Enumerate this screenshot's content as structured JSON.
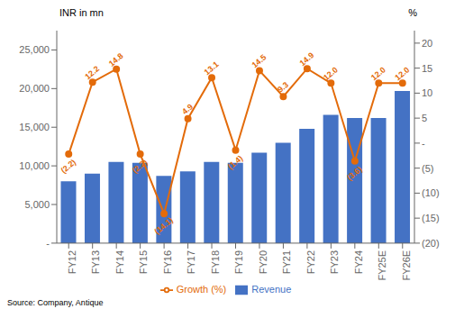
{
  "chart_data": {
    "type": "bar",
    "ylabel": "INR in mn",
    "y2label": "%",
    "annotations": [
      "Source: Company,  Antique"
    ],
    "categories": [
      "FY12",
      "FY13",
      "FY14",
      "FY15",
      "FY16",
      "FY17",
      "FY18",
      "FY19",
      "FY20",
      "FY21",
      "FY22",
      "FY23",
      "FY24",
      "FY25E",
      "FY26E"
    ],
    "series": [
      {
        "name": "Revenue",
        "type": "bar",
        "color": "#4472c4",
        "values": [
          8000,
          9000,
          10500,
          10400,
          8700,
          9300,
          10500,
          10400,
          11700,
          13000,
          14800,
          16600,
          16200,
          16200,
          19700
        ]
      },
      {
        "name": "Growth (%)",
        "type": "line",
        "axis": "y2",
        "color": "#e36b0a",
        "marker": "circle",
        "data_labels": true,
        "values": [
          -2.2,
          12.2,
          14.8,
          -2.2,
          -14.1,
          4.9,
          13.1,
          -1.4,
          14.5,
          9.3,
          14.9,
          12.0,
          -3.6,
          12.0,
          12.0
        ],
        "value_labels": [
          "(2.2)",
          "12.2",
          "14.8",
          "(2.2)",
          "(14.1)",
          "4.9",
          "13.1",
          "(1.4)",
          "14.5",
          "9.3",
          "14.9",
          "12.0",
          "(3.6)",
          "12.0",
          "12.0"
        ]
      }
    ],
    "ylim": [
      0,
      27500
    ],
    "yticks": [
      {
        "value": 0,
        "label": "-"
      },
      {
        "value": 5000,
        "label": "5,000"
      },
      {
        "value": 10000,
        "label": "10,000"
      },
      {
        "value": 15000,
        "label": "15,000"
      },
      {
        "value": 20000,
        "label": "20,000"
      },
      {
        "value": 25000,
        "label": "25,000"
      }
    ],
    "y2lim": [
      -20,
      22.5
    ],
    "y2ticks": [
      {
        "value": -20,
        "label": "(20)"
      },
      {
        "value": -15,
        "label": "(15)"
      },
      {
        "value": -10,
        "label": "(10)"
      },
      {
        "value": -5,
        "label": "(5)"
      },
      {
        "value": 0,
        "label": "-"
      },
      5,
      10,
      15,
      20
    ],
    "grid": false,
    "legend": "bottom"
  }
}
